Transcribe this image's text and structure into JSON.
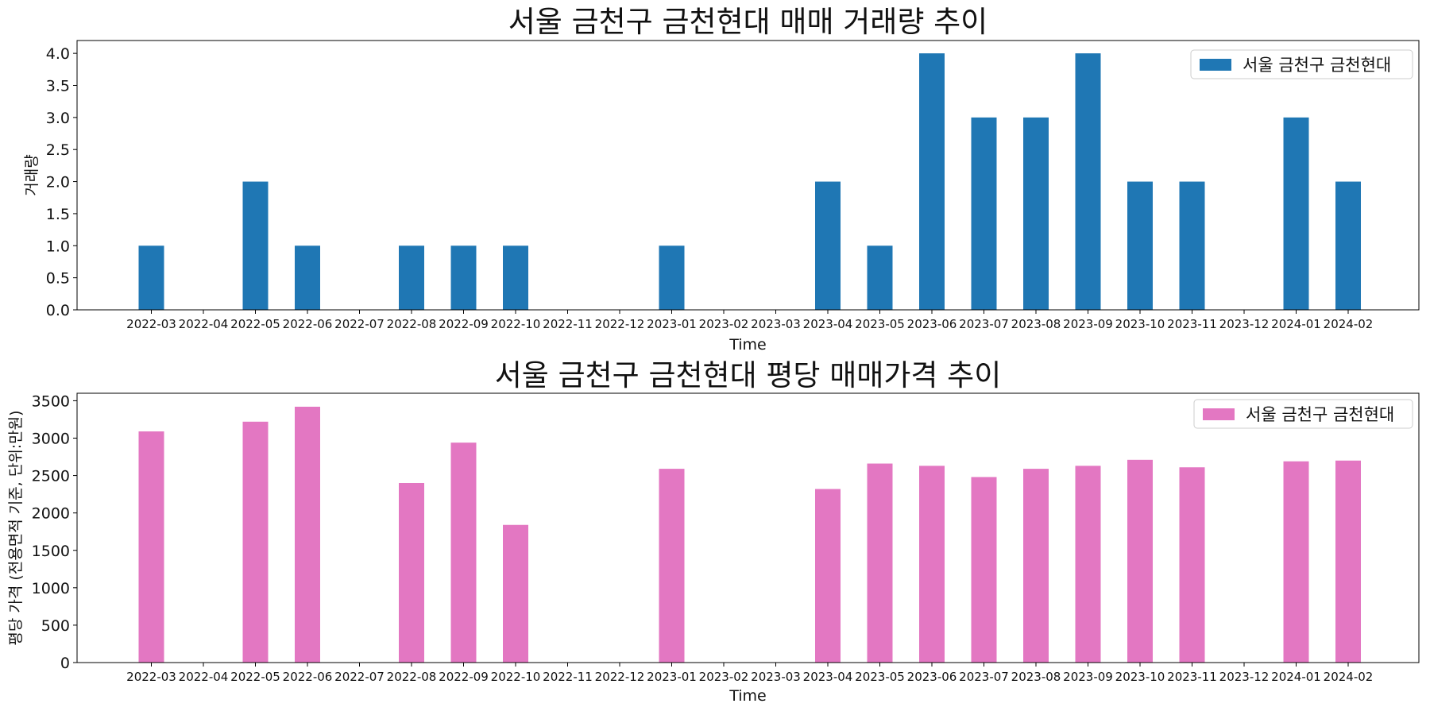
{
  "chart_data": [
    {
      "type": "bar",
      "title": "서울 금천구 금천현대 매매 거래량 추이",
      "xlabel": "Time",
      "ylabel": "거래량",
      "ylim": [
        0,
        4.2
      ],
      "yticks": [
        "0.0",
        "0.5",
        "1.0",
        "1.5",
        "2.0",
        "2.5",
        "3.0",
        "3.5",
        "4.0"
      ],
      "grid": false,
      "legend_position": "top-right",
      "color": "#1f77b4",
      "categories": [
        "2022-03",
        "2022-04",
        "2022-05",
        "2022-06",
        "2022-07",
        "2022-08",
        "2022-09",
        "2022-10",
        "2022-11",
        "2022-12",
        "2023-01",
        "2023-02",
        "2023-03",
        "2023-04",
        "2023-05",
        "2023-06",
        "2023-07",
        "2023-08",
        "2023-09",
        "2023-10",
        "2023-11",
        "2023-12",
        "2024-01",
        "2024-02"
      ],
      "series": [
        {
          "name": "서울 금천구 금천현대",
          "values": [
            1,
            0,
            2,
            1,
            0,
            1,
            1,
            1,
            0,
            0,
            1,
            0,
            0,
            2,
            1,
            4,
            3,
            3,
            4,
            2,
            2,
            0,
            3,
            2
          ]
        }
      ]
    },
    {
      "type": "bar",
      "title": "서울 금천구 금천현대 평당 매매가격 추이",
      "xlabel": "Time",
      "ylabel": "평당 가격 (전용면적 기준, 단위:만원)",
      "ylim": [
        0,
        3600
      ],
      "yticks": [
        "0",
        "500",
        "1000",
        "1500",
        "2000",
        "2500",
        "3000",
        "3500"
      ],
      "grid": false,
      "legend_position": "top-right",
      "color": "#e377c2",
      "categories": [
        "2022-03",
        "2022-04",
        "2022-05",
        "2022-06",
        "2022-07",
        "2022-08",
        "2022-09",
        "2022-10",
        "2022-11",
        "2022-12",
        "2023-01",
        "2023-02",
        "2023-03",
        "2023-04",
        "2023-05",
        "2023-06",
        "2023-07",
        "2023-08",
        "2023-09",
        "2023-10",
        "2023-11",
        "2023-12",
        "2024-01",
        "2024-02"
      ],
      "series": [
        {
          "name": "서울 금천구 금천현대",
          "values": [
            3090,
            0,
            3220,
            3420,
            0,
            2400,
            2940,
            1840,
            0,
            0,
            2590,
            0,
            0,
            2320,
            2660,
            2630,
            2480,
            2590,
            2630,
            2710,
            2610,
            0,
            2690,
            2700
          ]
        }
      ]
    }
  ]
}
